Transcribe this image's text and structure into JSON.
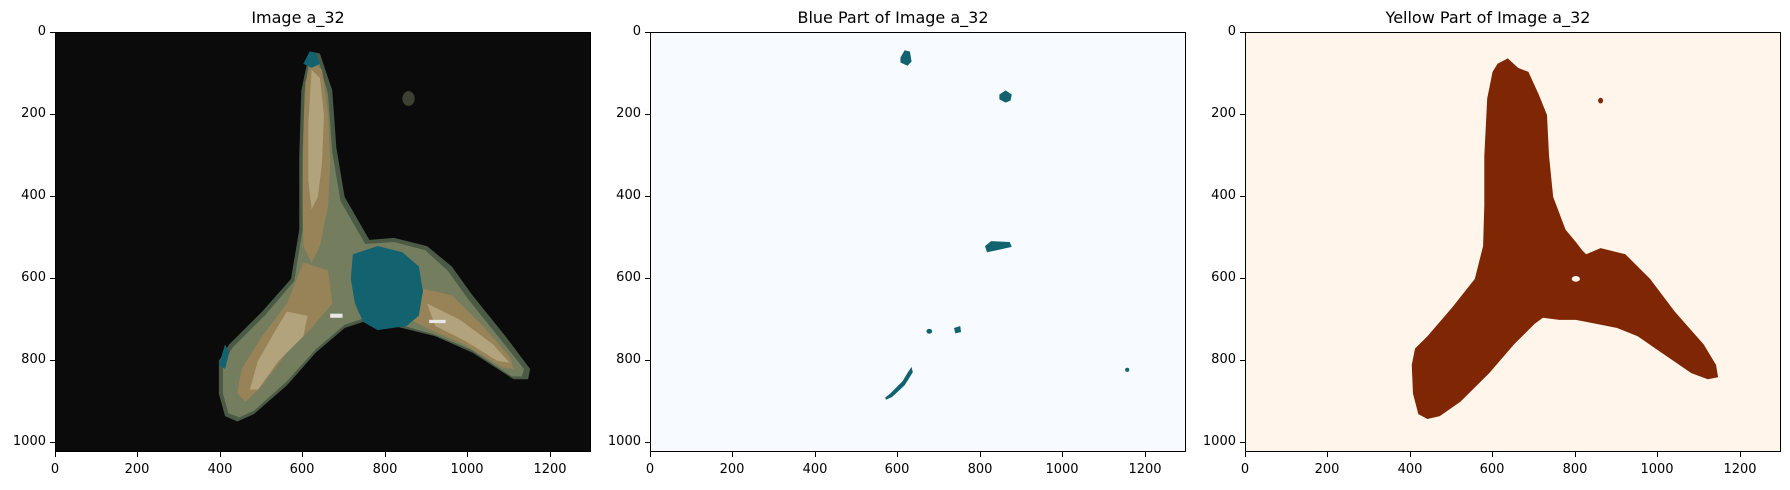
{
  "colors": {
    "dark_background": "#0c0b0b",
    "blue_region": "#136270",
    "olive": "#757d5f",
    "tan": "#988358",
    "light_tan": "#b2a37d",
    "blue_panel_background": "#f7fbff",
    "yellow_panel_background": "#fff5eb",
    "yellow_region": "#7f2704"
  },
  "panels": [
    {
      "title": "Image a_32",
      "x_ticks": [
        "0",
        "200",
        "400",
        "600",
        "800",
        "1000",
        "1200"
      ],
      "y_ticks": [
        "0",
        "200",
        "400",
        "600",
        "800",
        "1000"
      ]
    },
    {
      "title": "Blue Part of Image a_32",
      "x_ticks": [
        "0",
        "200",
        "400",
        "600",
        "800",
        "1000",
        "1200"
      ],
      "y_ticks": [
        "0",
        "200",
        "400",
        "600",
        "800",
        "1000"
      ]
    },
    {
      "title": "Yellow Part of Image a_32",
      "x_ticks": [
        "0",
        "200",
        "400",
        "600",
        "800",
        "1000",
        "1200"
      ],
      "y_ticks": [
        "0",
        "200",
        "400",
        "600",
        "800",
        "1000"
      ]
    }
  ]
}
